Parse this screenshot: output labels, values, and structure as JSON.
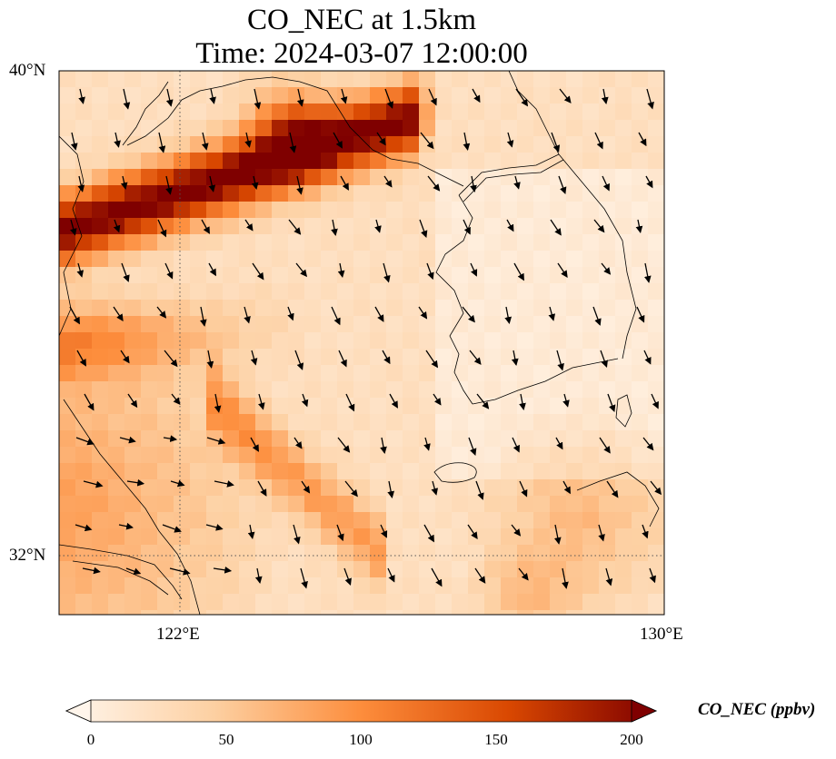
{
  "title": {
    "line1": "CO_NEC at 1.5km",
    "line2": "Time: 2024-03-07 12:00:00"
  },
  "axes": {
    "lat_ticks": [
      "40°N",
      "32°N"
    ],
    "lon_ticks": [
      "122°E",
      "130°E"
    ]
  },
  "colorbar": {
    "label": "CO_NEC (ppbv)",
    "ticks": [
      "0",
      "50",
      "100",
      "150",
      "200"
    ],
    "min": 0,
    "max": 200,
    "extend": "both",
    "colormap": [
      "#fff5eb",
      "#fdd0a2",
      "#fd8d3c",
      "#d94801",
      "#7f0000"
    ]
  },
  "map": {
    "lon_range": [
      120,
      130
    ],
    "lat_range": [
      31,
      40
    ],
    "gridlines": "dotted",
    "field": "CO_NEC",
    "vectors": "wind arrows"
  }
}
